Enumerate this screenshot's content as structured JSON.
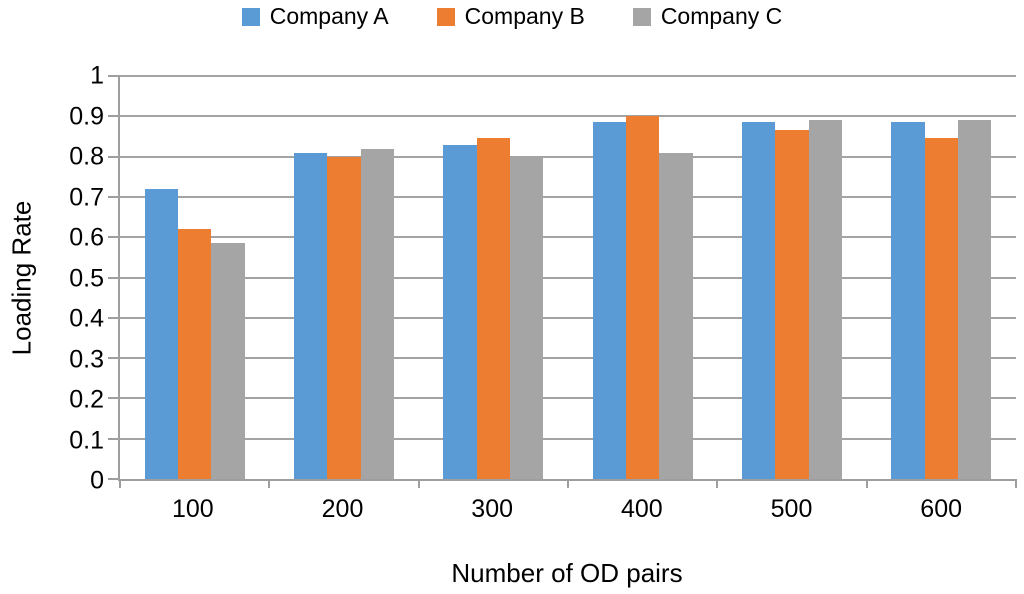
{
  "chart_data": {
    "type": "bar",
    "title": "",
    "xlabel": "Number of OD pairs",
    "ylabel": "Loading Rate",
    "categories": [
      "100",
      "200",
      "300",
      "400",
      "500",
      "600"
    ],
    "series": [
      {
        "name": "Company A",
        "color": "#5B9BD5",
        "values": [
          0.72,
          0.81,
          0.83,
          0.885,
          0.885,
          0.885
        ]
      },
      {
        "name": "Company B",
        "color": "#ED7D31",
        "values": [
          0.62,
          0.8,
          0.845,
          0.9,
          0.865,
          0.845
        ]
      },
      {
        "name": "Company C",
        "color": "#A5A5A5",
        "values": [
          0.585,
          0.82,
          0.8,
          0.81,
          0.89,
          0.89
        ]
      }
    ],
    "ylim": [
      0,
      1
    ],
    "ytick_step": 0.1,
    "ytick_labels": [
      "0",
      "0.1",
      "0.2",
      "0.3",
      "0.4",
      "0.5",
      "0.6",
      "0.7",
      "0.8",
      "0.9",
      "1"
    ],
    "grid": true,
    "legend_position": "top",
    "gridline_color": "#A3A3A3",
    "axis_color": "#9E9E9E",
    "text_color": "#000000"
  }
}
